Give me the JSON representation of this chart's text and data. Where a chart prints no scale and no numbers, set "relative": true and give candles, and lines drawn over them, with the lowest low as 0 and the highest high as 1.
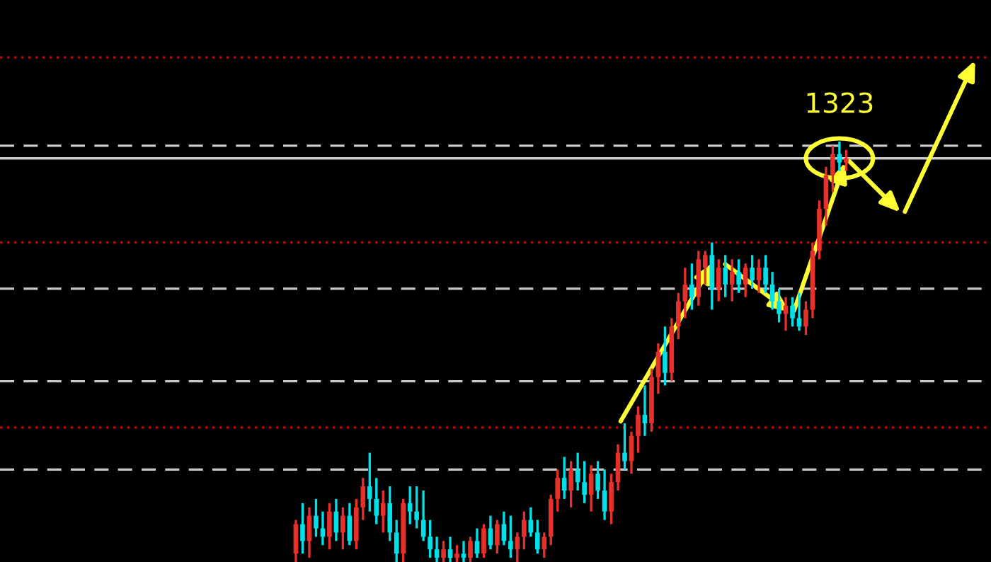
{
  "chart_data": {
    "type": "candlestick",
    "relative": true,
    "categories": [
      null,
      null,
      null,
      null,
      null,
      null,
      null,
      null,
      null,
      null,
      null,
      null,
      null,
      null,
      null,
      null,
      null,
      null,
      null,
      null,
      null,
      null,
      null,
      null,
      null,
      null,
      null,
      null,
      null,
      null,
      null,
      null,
      null,
      null,
      null,
      null,
      null,
      null,
      null,
      null,
      null,
      null,
      null,
      null,
      null,
      null,
      null,
      null,
      null,
      null,
      null,
      null,
      null,
      null,
      null,
      null,
      null,
      null,
      null,
      null,
      null,
      null,
      null,
      null,
      null,
      null,
      null,
      null,
      null,
      null,
      null,
      null,
      null,
      null,
      null,
      null,
      null,
      null,
      null,
      null,
      null,
      null,
      null
    ],
    "ohlc": [
      [
        0.02,
        0.1,
        0.0,
        0.09
      ],
      [
        0.09,
        0.14,
        0.02,
        0.05
      ],
      [
        0.05,
        0.13,
        0.01,
        0.11
      ],
      [
        0.11,
        0.15,
        0.06,
        0.08
      ],
      [
        0.08,
        0.12,
        0.04,
        0.06
      ],
      [
        0.06,
        0.14,
        0.03,
        0.12
      ],
      [
        0.12,
        0.15,
        0.05,
        0.07
      ],
      [
        0.07,
        0.13,
        0.03,
        0.11
      ],
      [
        0.11,
        0.14,
        0.04,
        0.05
      ],
      [
        0.05,
        0.15,
        0.03,
        0.13
      ],
      [
        0.13,
        0.2,
        0.1,
        0.18
      ],
      [
        0.18,
        0.26,
        0.12,
        0.15
      ],
      [
        0.15,
        0.2,
        0.09,
        0.11
      ],
      [
        0.11,
        0.17,
        0.07,
        0.14
      ],
      [
        0.14,
        0.18,
        0.05,
        0.07
      ],
      [
        0.07,
        0.1,
        0.0,
        0.02
      ],
      [
        0.02,
        0.15,
        0.0,
        0.14
      ],
      [
        0.14,
        0.18,
        0.09,
        0.12
      ],
      [
        0.12,
        0.18,
        0.08,
        0.1
      ],
      [
        0.1,
        0.17,
        0.05,
        0.06
      ],
      [
        0.06,
        0.1,
        0.01,
        0.03
      ],
      [
        0.03,
        0.06,
        0.0,
        0.01
      ],
      [
        0.01,
        0.05,
        0.0,
        0.03
      ],
      [
        0.03,
        0.06,
        0.0,
        0.01
      ],
      [
        0.01,
        0.04,
        0.0,
        0.02
      ],
      [
        0.02,
        0.05,
        0.0,
        0.01
      ],
      [
        0.01,
        0.06,
        0.0,
        0.05
      ],
      [
        0.05,
        0.08,
        0.01,
        0.02
      ],
      [
        0.02,
        0.09,
        0.01,
        0.08
      ],
      [
        0.08,
        0.11,
        0.03,
        0.04
      ],
      [
        0.04,
        0.1,
        0.02,
        0.09
      ],
      [
        0.09,
        0.12,
        0.04,
        0.05
      ],
      [
        0.05,
        0.11,
        0.01,
        0.03
      ],
      [
        0.03,
        0.07,
        0.0,
        0.06
      ],
      [
        0.06,
        0.12,
        0.03,
        0.1
      ],
      [
        0.1,
        0.13,
        0.06,
        0.07
      ],
      [
        0.07,
        0.1,
        0.02,
        0.03
      ],
      [
        0.03,
        0.07,
        0.01,
        0.06
      ],
      [
        0.06,
        0.16,
        0.04,
        0.15
      ],
      [
        0.15,
        0.22,
        0.12,
        0.2
      ],
      [
        0.2,
        0.25,
        0.15,
        0.17
      ],
      [
        0.17,
        0.24,
        0.13,
        0.22
      ],
      [
        0.22,
        0.26,
        0.17,
        0.19
      ],
      [
        0.19,
        0.24,
        0.14,
        0.16
      ],
      [
        0.16,
        0.23,
        0.12,
        0.21
      ],
      [
        0.21,
        0.24,
        0.15,
        0.17
      ],
      [
        0.17,
        0.22,
        0.1,
        0.12
      ],
      [
        0.12,
        0.21,
        0.09,
        0.19
      ],
      [
        0.19,
        0.28,
        0.17,
        0.26
      ],
      [
        0.26,
        0.33,
        0.22,
        0.24
      ],
      [
        0.24,
        0.31,
        0.21,
        0.3
      ],
      [
        0.3,
        0.37,
        0.26,
        0.35
      ],
      [
        0.35,
        0.42,
        0.3,
        0.33
      ],
      [
        0.33,
        0.46,
        0.31,
        0.44
      ],
      [
        0.44,
        0.52,
        0.4,
        0.5
      ],
      [
        0.5,
        0.56,
        0.42,
        0.45
      ],
      [
        0.45,
        0.58,
        0.43,
        0.56
      ],
      [
        0.56,
        0.64,
        0.53,
        0.62
      ],
      [
        0.62,
        0.7,
        0.58,
        0.66
      ],
      [
        0.66,
        0.71,
        0.6,
        0.63
      ],
      [
        0.63,
        0.74,
        0.61,
        0.72
      ],
      [
        0.7,
        0.74,
        0.66,
        0.73
      ],
      [
        0.73,
        0.76,
        0.6,
        0.65
      ],
      [
        0.65,
        0.72,
        0.62,
        0.7
      ],
      [
        0.7,
        0.73,
        0.63,
        0.66
      ],
      [
        0.66,
        0.72,
        0.62,
        0.69
      ],
      [
        0.69,
        0.72,
        0.64,
        0.66
      ],
      [
        0.66,
        0.71,
        0.63,
        0.7
      ],
      [
        0.7,
        0.73,
        0.65,
        0.67
      ],
      [
        0.67,
        0.72,
        0.64,
        0.7
      ],
      [
        0.7,
        0.73,
        0.64,
        0.66
      ],
      [
        0.66,
        0.69,
        0.6,
        0.62
      ],
      [
        0.62,
        0.65,
        0.57,
        0.59
      ],
      [
        0.59,
        0.63,
        0.55,
        0.61
      ],
      [
        0.61,
        0.63,
        0.56,
        0.58
      ],
      [
        0.58,
        0.64,
        0.55,
        0.56
      ],
      [
        0.56,
        0.62,
        0.54,
        0.6
      ],
      [
        0.6,
        0.76,
        0.58,
        0.74
      ],
      [
        0.74,
        0.86,
        0.72,
        0.84
      ],
      [
        0.84,
        0.94,
        0.8,
        0.92
      ],
      [
        0.92,
        0.99,
        0.88,
        0.97
      ],
      [
        0.97,
        1.0,
        0.93,
        0.95
      ],
      [
        0.95,
        0.98,
        0.93,
        0.96
      ]
    ],
    "colors": [
      "#e8302a",
      "#00e0e8",
      "#e8302a",
      "#00e0e8",
      "#00e0e8",
      "#e8302a",
      "#00e0e8",
      "#e8302a",
      "#00e0e8",
      "#e8302a",
      "#e8302a",
      "#00e0e8",
      "#00e0e8",
      "#e8302a",
      "#00e0e8",
      "#00e0e8",
      "#e8302a",
      "#00e0e8",
      "#00e0e8",
      "#00e0e8",
      "#00e0e8",
      "#00e0e8",
      "#e8302a",
      "#00e0e8",
      "#e8302a",
      "#00e0e8",
      "#e8302a",
      "#00e0e8",
      "#e8302a",
      "#00e0e8",
      "#e8302a",
      "#00e0e8",
      "#00e0e8",
      "#e8302a",
      "#e8302a",
      "#00e0e8",
      "#00e0e8",
      "#e8302a",
      "#e8302a",
      "#e8302a",
      "#00e0e8",
      "#e8302a",
      "#00e0e8",
      "#00e0e8",
      "#e8302a",
      "#00e0e8",
      "#00e0e8",
      "#e8302a",
      "#e8302a",
      "#00e0e8",
      "#e8302a",
      "#e8302a",
      "#00e0e8",
      "#e8302a",
      "#e8302a",
      "#00e0e8",
      "#e8302a",
      "#e8302a",
      "#e8302a",
      "#00e0e8",
      "#e8302a",
      "#e8302a",
      "#00e0e8",
      "#e8302a",
      "#00e0e8",
      "#e8302a",
      "#00e0e8",
      "#e8302a",
      "#00e0e8",
      "#e8302a",
      "#00e0e8",
      "#00e0e8",
      "#00e0e8",
      "#e8302a",
      "#00e0e8",
      "#00e0e8",
      "#e8302a",
      "#e8302a",
      "#e8302a",
      "#e8302a",
      "#e8302a",
      "#00e0e8",
      "#e8302a"
    ],
    "ref_lines": [
      {
        "axis": "y",
        "value": 1.2,
        "color": "#b01010",
        "line_style": "dotted"
      },
      {
        "axis": "y",
        "value": 0.99,
        "color": "#c8c8c8",
        "line_style": "dashed"
      },
      {
        "axis": "y",
        "value": 0.96,
        "color": "#c8c8c8",
        "line_style": "solid"
      },
      {
        "axis": "y",
        "value": 0.76,
        "color": "#b01010",
        "line_style": "dotted"
      },
      {
        "axis": "y",
        "value": 0.65,
        "color": "#c8c8c8",
        "line_style": "dashed"
      },
      {
        "axis": "y",
        "value": 0.43,
        "color": "#c8c8c8",
        "line_style": "dashed"
      },
      {
        "axis": "y",
        "value": 0.32,
        "color": "#b01010",
        "line_style": "dotted"
      },
      {
        "axis": "y",
        "value": 0.22,
        "color": "#c8c8c8",
        "line_style": "dashed"
      }
    ],
    "annotations": [
      "1323"
    ]
  }
}
